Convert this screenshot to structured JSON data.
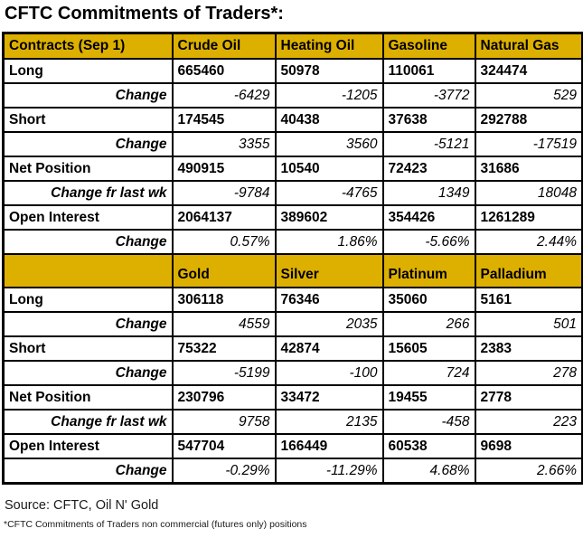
{
  "title": "CFTC Commitments of Traders*:",
  "colors": {
    "header_bg": "#DDB000",
    "label_bg": "#E9E9A2",
    "net_position_green": "#008000",
    "border": "#000000"
  },
  "sections": [
    {
      "header": [
        "Contracts (Sep 1)",
        "Crude Oil",
        "Heating Oil",
        "Gasoline",
        "Natural Gas"
      ],
      "rows": [
        {
          "label": "Long",
          "type": "value",
          "values": [
            "665460",
            "50978",
            "110061",
            "324474"
          ]
        },
        {
          "label": "Change",
          "type": "change",
          "values": [
            "-6429",
            "-1205",
            "-3772",
            "529"
          ]
        },
        {
          "label": "Short",
          "type": "value",
          "values": [
            "174545",
            "40438",
            "37638",
            "292788"
          ]
        },
        {
          "label": "Change",
          "type": "change",
          "values": [
            "3355",
            "3560",
            "-5121",
            "-17519"
          ]
        },
        {
          "label": "Net Position",
          "type": "net",
          "values": [
            "490915",
            "10540",
            "72423",
            "31686"
          ]
        },
        {
          "label": "Change fr last wk",
          "type": "change",
          "values": [
            "-9784",
            "-4765",
            "1349",
            "18048"
          ]
        },
        {
          "label": "Open Interest",
          "type": "value",
          "values": [
            "2064137",
            "389602",
            "354426",
            "1261289"
          ]
        },
        {
          "label": "Change",
          "type": "change",
          "values": [
            "0.57%",
            "1.86%",
            "-5.66%",
            "2.44%"
          ]
        }
      ]
    },
    {
      "header": [
        "",
        "Gold",
        "Silver",
        "Platinum",
        "Palladium"
      ],
      "rows": [
        {
          "label": "Long",
          "type": "value",
          "values": [
            "306118",
            "76346",
            "35060",
            "5161"
          ]
        },
        {
          "label": "Change",
          "type": "change",
          "values": [
            "4559",
            "2035",
            "266",
            "501"
          ]
        },
        {
          "label": "Short",
          "type": "value",
          "values": [
            "75322",
            "42874",
            "15605",
            "2383"
          ]
        },
        {
          "label": "Change",
          "type": "change",
          "values": [
            "-5199",
            "-100",
            "724",
            "278"
          ]
        },
        {
          "label": "Net Position",
          "type": "net",
          "values": [
            "230796",
            "33472",
            "19455",
            "2778"
          ]
        },
        {
          "label": "Change fr last wk",
          "type": "change",
          "values": [
            "9758",
            "2135",
            "-458",
            "223"
          ]
        },
        {
          "label": "Open Interest",
          "type": "value",
          "values": [
            "547704",
            "166449",
            "60538",
            "9698"
          ]
        },
        {
          "label": "Change",
          "type": "change",
          "values": [
            "-0.29%",
            "-11.29%",
            "4.68%",
            "2.66%"
          ]
        }
      ]
    }
  ],
  "footer": {
    "source": "Source: CFTC, Oil N' Gold",
    "note": "*CFTC Commitments of Traders non commercial (futures only) positions"
  }
}
